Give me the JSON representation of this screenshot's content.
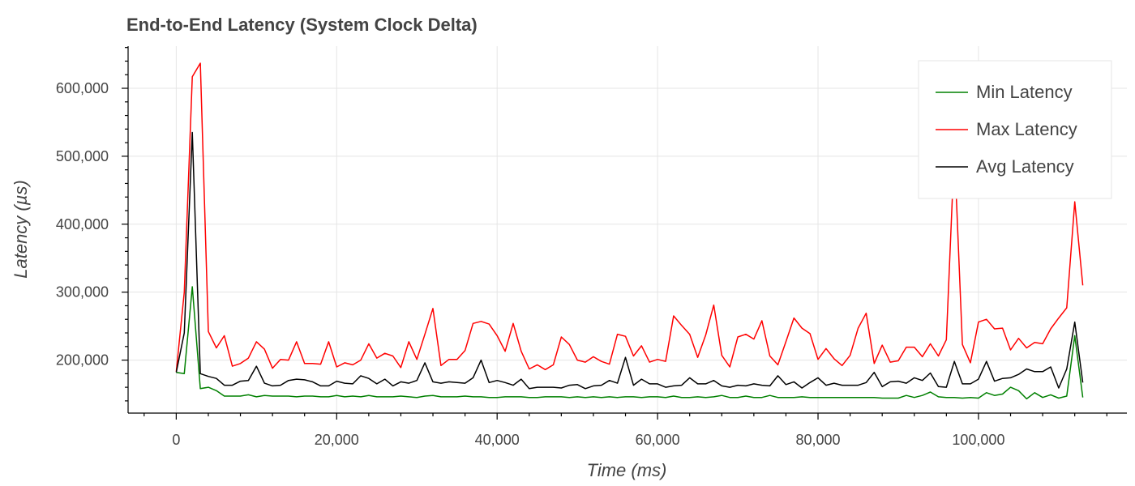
{
  "colors": {
    "min": "#008000",
    "max": "#ff0000",
    "avg": "#000000",
    "grid": "#e5e5e5",
    "text": "#444444"
  },
  "chart_data": {
    "type": "line",
    "title": "End-to-End Latency (System Clock Delta)",
    "xlabel": "Time (ms)",
    "ylabel": "Latency (µs)",
    "xlim": [
      -6000,
      118500
    ],
    "ylim": [
      122000,
      662000
    ],
    "xticks": [
      0,
      20000,
      40000,
      60000,
      80000,
      100000
    ],
    "yticks": [
      200000,
      300000,
      400000,
      500000,
      600000
    ],
    "xtick_labels": [
      "0",
      "20,000",
      "40,000",
      "60,000",
      "80,000",
      "100,000"
    ],
    "ytick_labels": [
      "200,000",
      "300,000",
      "400,000",
      "500,000",
      "600,000"
    ],
    "grid": true,
    "legend_position": "top-right",
    "series": [
      {
        "name": "Min Latency",
        "color": "#008000",
        "x": [
          0,
          1000,
          2000,
          3000,
          4000,
          5000,
          6000,
          7000,
          8000,
          9000,
          10000,
          11000,
          12000,
          13000,
          14000,
          15000,
          16000,
          17000,
          18000,
          19000,
          20000,
          21000,
          22000,
          23000,
          24000,
          25000,
          26000,
          27000,
          28000,
          29000,
          30000,
          31000,
          32000,
          33000,
          34000,
          35000,
          36000,
          37000,
          38000,
          39000,
          40000,
          41000,
          42000,
          43000,
          44000,
          45000,
          46000,
          47000,
          48000,
          49000,
          50000,
          51000,
          52000,
          53000,
          54000,
          55000,
          56000,
          57000,
          58000,
          59000,
          60000,
          61000,
          62000,
          63000,
          64000,
          65000,
          66000,
          67000,
          68000,
          69000,
          70000,
          71000,
          72000,
          73000,
          74000,
          75000,
          76000,
          77000,
          78000,
          79000,
          80000,
          81000,
          82000,
          83000,
          84000,
          85000,
          86000,
          87000,
          88000,
          89000,
          90000,
          91000,
          92000,
          93000,
          94000,
          95000,
          96000,
          97000,
          98000,
          99000,
          100000,
          101000,
          102000,
          103000,
          104000,
          105000,
          106000,
          107000,
          108000,
          109000,
          110000,
          111000,
          112000,
          113000
        ],
        "values": [
          182000,
          180000,
          308000,
          158000,
          160000,
          155000,
          147000,
          147000,
          147000,
          149000,
          146000,
          148000,
          147000,
          147000,
          147000,
          146000,
          147000,
          147000,
          146000,
          146000,
          148000,
          146000,
          147000,
          146000,
          148000,
          146000,
          146000,
          146000,
          147000,
          146000,
          145000,
          147000,
          148000,
          146000,
          146000,
          146000,
          147000,
          146000,
          146000,
          145000,
          145000,
          146000,
          146000,
          146000,
          145000,
          145000,
          146000,
          146000,
          146000,
          145000,
          146000,
          145000,
          146000,
          145000,
          146000,
          145000,
          146000,
          146000,
          145000,
          146000,
          146000,
          145000,
          147000,
          145000,
          145000,
          146000,
          145000,
          146000,
          148000,
          145000,
          145000,
          147000,
          145000,
          145000,
          148000,
          145000,
          145000,
          145000,
          146000,
          145000,
          145000,
          145000,
          145000,
          145000,
          145000,
          145000,
          145000,
          145000,
          144000,
          144000,
          144000,
          148000,
          145000,
          148000,
          153000,
          146000,
          145000,
          145000,
          144000,
          145000,
          144000,
          152000,
          148000,
          150000,
          160000,
          155000,
          143000,
          152000,
          145000,
          149000,
          144000,
          147000,
          236000,
          145000
        ]
      },
      {
        "name": "Max Latency",
        "color": "#ff0000",
        "x": [
          0,
          1000,
          2000,
          3000,
          4000,
          5000,
          6000,
          7000,
          8000,
          9000,
          10000,
          11000,
          12000,
          13000,
          14000,
          15000,
          16000,
          17000,
          18000,
          19000,
          20000,
          21000,
          22000,
          23000,
          24000,
          25000,
          26000,
          27000,
          28000,
          29000,
          30000,
          31000,
          32000,
          33000,
          34000,
          35000,
          36000,
          37000,
          38000,
          39000,
          40000,
          41000,
          42000,
          43000,
          44000,
          45000,
          46000,
          47000,
          48000,
          49000,
          50000,
          51000,
          52000,
          53000,
          54000,
          55000,
          56000,
          57000,
          58000,
          59000,
          60000,
          61000,
          62000,
          63000,
          64000,
          65000,
          66000,
          67000,
          68000,
          69000,
          70000,
          71000,
          72000,
          73000,
          74000,
          75000,
          76000,
          77000,
          78000,
          79000,
          80000,
          81000,
          82000,
          83000,
          84000,
          85000,
          86000,
          87000,
          88000,
          89000,
          90000,
          91000,
          92000,
          93000,
          94000,
          95000,
          96000,
          97000,
          98000,
          99000,
          100000,
          101000,
          102000,
          103000,
          104000,
          105000,
          106000,
          107000,
          108000,
          109000,
          110000,
          111000,
          112000,
          113000
        ],
        "values": [
          183000,
          300000,
          617000,
          637000,
          242000,
          218000,
          236000,
          191000,
          195000,
          203000,
          227000,
          216000,
          188000,
          201000,
          200000,
          227000,
          195000,
          195000,
          194000,
          227000,
          190000,
          196000,
          193000,
          200000,
          224000,
          203000,
          210000,
          206000,
          189000,
          227000,
          201000,
          238000,
          276000,
          192000,
          201000,
          201000,
          214000,
          254000,
          257000,
          253000,
          236000,
          213000,
          254000,
          213000,
          187000,
          193000,
          186000,
          193000,
          234000,
          223000,
          200000,
          197000,
          205000,
          198000,
          194000,
          238000,
          235000,
          206000,
          221000,
          197000,
          201000,
          198000,
          265000,
          251000,
          238000,
          204000,
          237000,
          281000,
          207000,
          190000,
          234000,
          238000,
          231000,
          258000,
          206000,
          193000,
          227000,
          262000,
          247000,
          239000,
          201000,
          217000,
          202000,
          192000,
          207000,
          247000,
          269000,
          195000,
          222000,
          197000,
          199000,
          219000,
          219000,
          205000,
          224000,
          206000,
          230000,
          510000,
          223000,
          196000,
          256000,
          260000,
          246000,
          247000,
          215000,
          232000,
          218000,
          226000,
          224000,
          246000,
          262000,
          277000,
          433000,
          310000
        ]
      },
      {
        "name": "Avg Latency",
        "color": "#000000",
        "x": [
          0,
          1000,
          2000,
          3000,
          4000,
          5000,
          6000,
          7000,
          8000,
          9000,
          10000,
          11000,
          12000,
          13000,
          14000,
          15000,
          16000,
          17000,
          18000,
          19000,
          20000,
          21000,
          22000,
          23000,
          24000,
          25000,
          26000,
          27000,
          28000,
          29000,
          30000,
          31000,
          32000,
          33000,
          34000,
          35000,
          36000,
          37000,
          38000,
          39000,
          40000,
          41000,
          42000,
          43000,
          44000,
          45000,
          46000,
          47000,
          48000,
          49000,
          50000,
          51000,
          52000,
          53000,
          54000,
          55000,
          56000,
          57000,
          58000,
          59000,
          60000,
          61000,
          62000,
          63000,
          64000,
          65000,
          66000,
          67000,
          68000,
          69000,
          70000,
          71000,
          72000,
          73000,
          74000,
          75000,
          76000,
          77000,
          78000,
          79000,
          80000,
          81000,
          82000,
          83000,
          84000,
          85000,
          86000,
          87000,
          88000,
          89000,
          90000,
          91000,
          92000,
          93000,
          94000,
          95000,
          96000,
          97000,
          98000,
          99000,
          100000,
          101000,
          102000,
          103000,
          104000,
          105000,
          106000,
          107000,
          108000,
          109000,
          110000,
          111000,
          112000,
          113000
        ],
        "values": [
          182000,
          240000,
          535000,
          180000,
          176000,
          173000,
          163000,
          163000,
          169000,
          170000,
          191000,
          166000,
          162000,
          163000,
          170000,
          172000,
          171000,
          168000,
          162000,
          162000,
          169000,
          166000,
          165000,
          177000,
          173000,
          165000,
          172000,
          162000,
          168000,
          166000,
          170000,
          196000,
          168000,
          166000,
          168000,
          167000,
          166000,
          174000,
          200000,
          167000,
          170000,
          167000,
          163000,
          172000,
          158000,
          160000,
          160000,
          160000,
          159000,
          163000,
          164000,
          158000,
          162000,
          163000,
          170000,
          166000,
          204000,
          163000,
          172000,
          165000,
          165000,
          160000,
          162000,
          163000,
          174000,
          165000,
          165000,
          170000,
          162000,
          160000,
          163000,
          162000,
          165000,
          163000,
          162000,
          177000,
          164000,
          168000,
          159000,
          167000,
          174000,
          163000,
          166000,
          163000,
          163000,
          163000,
          167000,
          182000,
          161000,
          168000,
          169000,
          166000,
          174000,
          170000,
          181000,
          161000,
          160000,
          198000,
          165000,
          165000,
          172000,
          198000,
          169000,
          173000,
          174000,
          179000,
          187000,
          183000,
          183000,
          190000,
          159000,
          187000,
          256000,
          167000
        ]
      }
    ]
  }
}
